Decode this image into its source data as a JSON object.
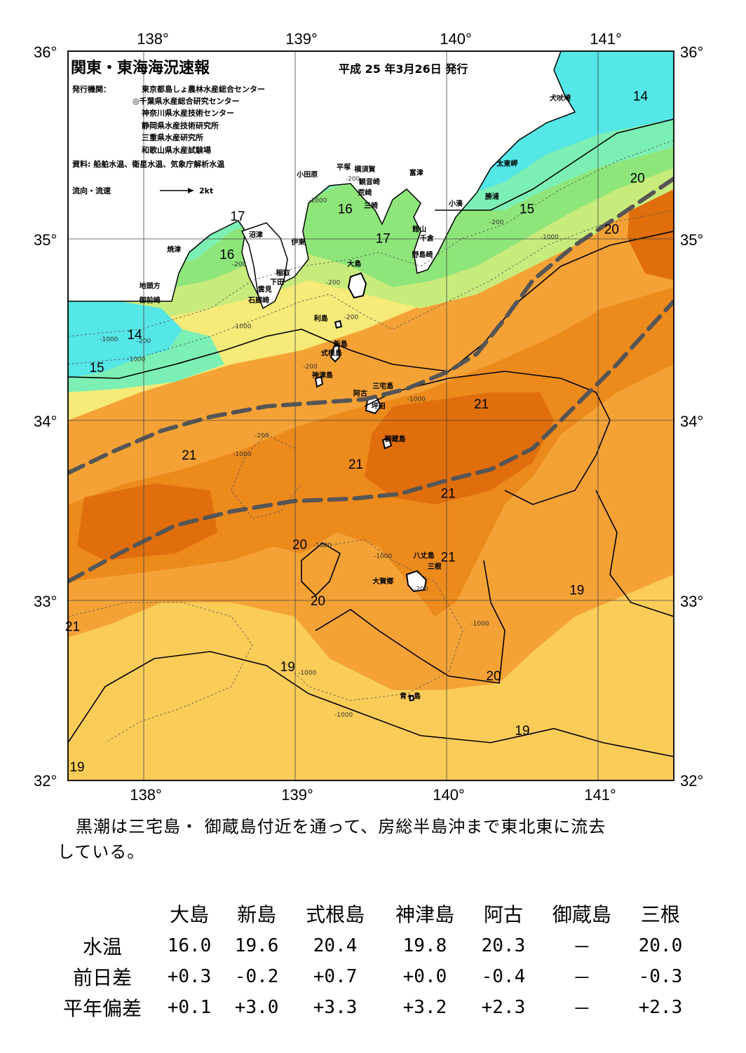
{
  "header": {
    "title": "関東・東海海況速報",
    "issue_date": "平成 25 年3月26日 発行",
    "publisher_label": "発行機関：",
    "publishers": [
      "東京都島しょ農林水産総合センター",
      "◎千葉県水産総合研究センター",
      "神奈川県水産技術センター",
      "静岡県水産技術研究所",
      "三重県水産研究所",
      "和歌山県水産試験場"
    ],
    "source": "資料: 船舶水温、衛星水温、気象庁解析水温",
    "flow_legend_label": "流向・流速",
    "flow_legend_value": "2kt"
  },
  "map": {
    "lon_ticks": [
      "138°",
      "139°",
      "140°",
      "141°"
    ],
    "lat_ticks": [
      "36°",
      "35°",
      "34°",
      "33°",
      "32°"
    ],
    "lon_range": [
      137.5,
      141.5
    ],
    "lat_range": [
      32,
      36
    ],
    "colors": {
      "t14": "#55e6e6",
      "t15": "#7cf0b4",
      "t16": "#8ee67a",
      "t17": "#c8ec7c",
      "t18": "#f6ea78",
      "t19": "#fbcd58",
      "t20": "#f4a236",
      "t21": "#ec8a1c",
      "t22": "#e06e0c",
      "land": "#ffffff",
      "kuroshio": "#555555"
    },
    "isotherm_labels": [
      {
        "text": "14",
        "lon": 141.28,
        "lat": 35.73
      },
      {
        "text": "20",
        "lon": 141.26,
        "lat": 35.28
      },
      {
        "text": "15",
        "lon": 140.53,
        "lat": 35.11
      },
      {
        "text": "20",
        "lon": 141.09,
        "lat": 35.0
      },
      {
        "text": "17",
        "lon": 138.62,
        "lat": 35.07
      },
      {
        "text": "16",
        "lon": 139.33,
        "lat": 35.11
      },
      {
        "text": "17",
        "lon": 139.58,
        "lat": 34.95
      },
      {
        "text": "16",
        "lon": 138.55,
        "lat": 34.86
      },
      {
        "text": "14",
        "lon": 137.94,
        "lat": 34.42
      },
      {
        "text": "15",
        "lon": 137.69,
        "lat": 34.24
      },
      {
        "text": "21",
        "lon": 140.23,
        "lat": 34.04
      },
      {
        "text": "21",
        "lon": 138.3,
        "lat": 33.76
      },
      {
        "text": "21",
        "lon": 139.4,
        "lat": 33.71
      },
      {
        "text": "21",
        "lon": 140.01,
        "lat": 33.55
      },
      {
        "text": "20",
        "lon": 139.03,
        "lat": 33.27
      },
      {
        "text": "21",
        "lon": 140.01,
        "lat": 33.2
      },
      {
        "text": "19",
        "lon": 140.86,
        "lat": 33.02
      },
      {
        "text": "20",
        "lon": 139.15,
        "lat": 32.96
      },
      {
        "text": "21",
        "lon": 137.53,
        "lat": 32.82
      },
      {
        "text": "19",
        "lon": 138.95,
        "lat": 32.6
      },
      {
        "text": "20",
        "lon": 140.31,
        "lat": 32.55
      },
      {
        "text": "19",
        "lon": 140.5,
        "lat": 32.25
      },
      {
        "text": "19",
        "lon": 137.56,
        "lat": 32.05
      }
    ],
    "depth_labels": [
      {
        "text": "-200",
        "lon": 139.38,
        "lat": 35.29
      },
      {
        "text": "-1000",
        "lon": 139.15,
        "lat": 35.17
      },
      {
        "text": "-200",
        "lon": 140.33,
        "lat": 35.05
      },
      {
        "text": "-1000",
        "lon": 140.68,
        "lat": 34.97
      },
      {
        "text": "-200",
        "lon": 138.63,
        "lat": 34.82
      },
      {
        "text": "-200",
        "lon": 139.25,
        "lat": 34.72
      },
      {
        "text": "-1000",
        "lon": 138.65,
        "lat": 34.48
      },
      {
        "text": "-200",
        "lon": 139.37,
        "lat": 34.53
      },
      {
        "text": "-1000",
        "lon": 137.77,
        "lat": 34.41
      },
      {
        "text": "-200",
        "lon": 138.0,
        "lat": 34.4
      },
      {
        "text": "-1000",
        "lon": 137.95,
        "lat": 34.3
      },
      {
        "text": "-200",
        "lon": 139.1,
        "lat": 34.26
      },
      {
        "text": "-1000",
        "lon": 139.8,
        "lat": 34.08
      },
      {
        "text": "-200",
        "lon": 138.78,
        "lat": 33.88
      },
      {
        "text": "-1000",
        "lon": 138.65,
        "lat": 33.78
      },
      {
        "text": "-1000",
        "lon": 139.18,
        "lat": 33.28
      },
      {
        "text": "-1000",
        "lon": 139.58,
        "lat": 33.22
      },
      {
        "text": "-200",
        "lon": 139.83,
        "lat": 33.04
      },
      {
        "text": "-1000",
        "lon": 140.22,
        "lat": 32.85
      },
      {
        "text": "-1000",
        "lon": 139.08,
        "lat": 32.58
      },
      {
        "text": "-1000",
        "lon": 139.32,
        "lat": 32.35
      }
    ],
    "place_labels": [
      {
        "text": "犬吠埼",
        "lon": 140.75,
        "lat": 35.73
      },
      {
        "text": "富津",
        "lon": 139.8,
        "lat": 35.32
      },
      {
        "text": "小田原",
        "lon": 139.08,
        "lat": 35.31
      },
      {
        "text": "平塚",
        "lon": 139.32,
        "lat": 35.35
      },
      {
        "text": "横須賀",
        "lon": 139.46,
        "lat": 35.34
      },
      {
        "text": "観音崎",
        "lon": 139.49,
        "lat": 35.27
      },
      {
        "text": "荒崎",
        "lon": 139.46,
        "lat": 35.21
      },
      {
        "text": "三崎",
        "lon": 139.5,
        "lat": 35.14
      },
      {
        "text": "太東岬",
        "lon": 140.4,
        "lat": 35.37
      },
      {
        "text": "勝浦",
        "lon": 140.3,
        "lat": 35.19
      },
      {
        "text": "小湊",
        "lon": 140.06,
        "lat": 35.15
      },
      {
        "text": "館山",
        "lon": 139.82,
        "lat": 35.01
      },
      {
        "text": "千倉",
        "lon": 139.87,
        "lat": 34.96
      },
      {
        "text": "野島崎",
        "lon": 139.84,
        "lat": 34.87
      },
      {
        "text": "沼津",
        "lon": 138.74,
        "lat": 34.98
      },
      {
        "text": "伊東",
        "lon": 139.02,
        "lat": 34.94
      },
      {
        "text": "大島",
        "lon": 139.39,
        "lat": 34.82
      },
      {
        "text": "焼津",
        "lon": 138.2,
        "lat": 34.9
      },
      {
        "text": "稲取",
        "lon": 138.92,
        "lat": 34.77
      },
      {
        "text": "下田",
        "lon": 138.88,
        "lat": 34.72
      },
      {
        "text": "雲見",
        "lon": 138.8,
        "lat": 34.68
      },
      {
        "text": "石廊崎",
        "lon": 138.76,
        "lat": 34.62
      },
      {
        "text": "地頭方",
        "lon": 138.04,
        "lat": 34.7
      },
      {
        "text": "御前崎",
        "lon": 138.04,
        "lat": 34.62
      },
      {
        "text": "利島",
        "lon": 139.17,
        "lat": 34.52
      },
      {
        "text": "新島",
        "lon": 139.3,
        "lat": 34.38
      },
      {
        "text": "式根島",
        "lon": 139.24,
        "lat": 34.33
      },
      {
        "text": "神津島",
        "lon": 139.18,
        "lat": 34.21
      },
      {
        "text": "三宅島",
        "lon": 139.58,
        "lat": 34.15
      },
      {
        "text": "阿古",
        "lon": 139.43,
        "lat": 34.11
      },
      {
        "text": "坪田",
        "lon": 139.55,
        "lat": 34.04
      },
      {
        "text": "御蔵島",
        "lon": 139.66,
        "lat": 33.86
      },
      {
        "text": "八丈島",
        "lon": 139.85,
        "lat": 33.22
      },
      {
        "text": "三根",
        "lon": 139.92,
        "lat": 33.16
      },
      {
        "text": "大賀郷",
        "lon": 139.58,
        "lat": 33.08
      },
      {
        "text": "青ヶ島",
        "lon": 139.76,
        "lat": 32.45
      }
    ]
  },
  "summary": {
    "line1": "黒潮は三宅島・ 御蔵島付近を通って、房総半島沖まで東北東に流去",
    "line2": "している。"
  },
  "stats_table": {
    "headers": [
      "大島",
      "新島",
      "式根島",
      "神津島",
      "阿古",
      "御蔵島",
      "三根"
    ],
    "rows": [
      {
        "label": "水温",
        "values": [
          "16.0",
          "19.6",
          "20.4",
          "19.8",
          "20.3",
          "－",
          "20.0"
        ]
      },
      {
        "label": "前日差",
        "values": [
          "+0.3",
          "-0.2",
          "+0.7",
          "+0.0",
          "-0.4",
          "－",
          "-0.3"
        ]
      },
      {
        "label": "平年偏差",
        "values": [
          "+0.1",
          "+3.0",
          "+3.3",
          "+3.2",
          "+2.3",
          "－",
          "+2.3"
        ]
      }
    ]
  }
}
